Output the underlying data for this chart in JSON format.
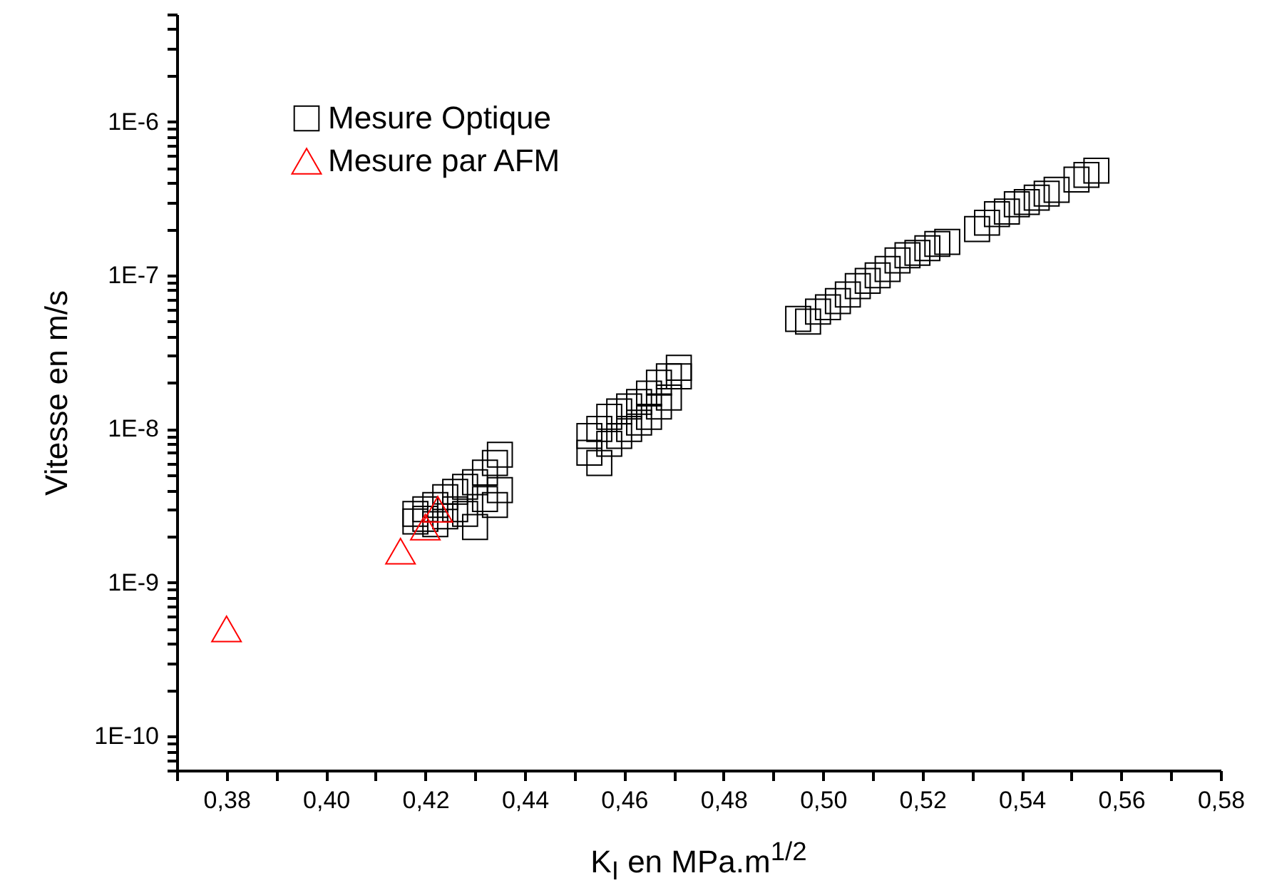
{
  "chart_data": {
    "type": "scatter",
    "xlabel": "K$_{I}$ en MPa.m$^{1/2}$",
    "ylabel": "Vitesse en m/s",
    "log": "y",
    "legend": "top left",
    "grid": false,
    "xlim": [
      0.37,
      0.58
    ],
    "ylim": [
      6e-11,
      5e-06
    ],
    "xticks": [
      {
        "value": 0.37,
        "label": null
      },
      {
        "value": 0.38,
        "label": "0,38"
      },
      {
        "value": 0.39,
        "label": null
      },
      {
        "value": 0.4,
        "label": "0,40"
      },
      {
        "value": 0.41,
        "label": null
      },
      {
        "value": 0.42,
        "label": "0,42"
      },
      {
        "value": 0.43,
        "label": null
      },
      {
        "value": 0.44,
        "label": "0,44"
      },
      {
        "value": 0.45,
        "label": null
      },
      {
        "value": 0.46,
        "label": "0,46"
      },
      {
        "value": 0.47,
        "label": null
      },
      {
        "value": 0.48,
        "label": "0,48"
      },
      {
        "value": 0.49,
        "label": null
      },
      {
        "value": 0.5,
        "label": "0,50"
      },
      {
        "value": 0.51,
        "label": null
      },
      {
        "value": 0.52,
        "label": "0,52"
      },
      {
        "value": 0.53,
        "label": null
      },
      {
        "value": 0.54,
        "label": "0,54"
      },
      {
        "value": 0.55,
        "label": null
      },
      {
        "value": 0.56,
        "label": "0,56"
      },
      {
        "value": 0.57,
        "label": null
      },
      {
        "value": 0.58,
        "label": "0,58"
      }
    ],
    "yticks": [
      {
        "value": 6e-11,
        "label": null
      },
      {
        "value": 7e-11,
        "label": null
      },
      {
        "value": 8e-11,
        "label": null
      },
      {
        "value": 9e-11,
        "label": null
      },
      {
        "value": 1e-10,
        "label": "1E-10"
      },
      {
        "value": 2e-10,
        "label": null
      },
      {
        "value": 3e-10,
        "label": null
      },
      {
        "value": 4e-10,
        "label": null
      },
      {
        "value": 5e-10,
        "label": null
      },
      {
        "value": 6e-10,
        "label": null
      },
      {
        "value": 7e-10,
        "label": null
      },
      {
        "value": 8e-10,
        "label": null
      },
      {
        "value": 9e-10,
        "label": null
      },
      {
        "value": 1e-09,
        "label": "1E-9"
      },
      {
        "value": 2e-09,
        "label": null
      },
      {
        "value": 3e-09,
        "label": null
      },
      {
        "value": 4e-09,
        "label": null
      },
      {
        "value": 5e-09,
        "label": null
      },
      {
        "value": 6e-09,
        "label": null
      },
      {
        "value": 7e-09,
        "label": null
      },
      {
        "value": 8e-09,
        "label": null
      },
      {
        "value": 9e-09,
        "label": null
      },
      {
        "value": 1e-08,
        "label": "1E-8"
      },
      {
        "value": 2e-08,
        "label": null
      },
      {
        "value": 3e-08,
        "label": null
      },
      {
        "value": 4e-08,
        "label": null
      },
      {
        "value": 5e-08,
        "label": null
      },
      {
        "value": 6e-08,
        "label": null
      },
      {
        "value": 7e-08,
        "label": null
      },
      {
        "value": 8e-08,
        "label": null
      },
      {
        "value": 9e-08,
        "label": null
      },
      {
        "value": 1e-07,
        "label": "1E-7"
      },
      {
        "value": 2e-07,
        "label": null
      },
      {
        "value": 3e-07,
        "label": null
      },
      {
        "value": 4e-07,
        "label": null
      },
      {
        "value": 5e-07,
        "label": null
      },
      {
        "value": 6e-07,
        "label": null
      },
      {
        "value": 7e-07,
        "label": null
      },
      {
        "value": 8e-07,
        "label": null
      },
      {
        "value": 9e-07,
        "label": null
      },
      {
        "value": 1e-06,
        "label": "1E-6"
      },
      {
        "value": 2e-06,
        "label": null
      },
      {
        "value": 3e-06,
        "label": null
      },
      {
        "value": 4e-06,
        "label": null
      },
      {
        "value": 5e-06,
        "label": null
      }
    ],
    "series": [
      {
        "name": "Mesure Optique",
        "color": "#000000",
        "marker": "square",
        "x": [
          0.418,
          0.418,
          0.42,
          0.42,
          0.422,
          0.422,
          0.424,
          0.424,
          0.426,
          0.426,
          0.428,
          0.428,
          0.43,
          0.43,
          0.432,
          0.432,
          0.434,
          0.434,
          0.435,
          0.435,
          0.453,
          0.453,
          0.455,
          0.455,
          0.457,
          0.457,
          0.459,
          0.459,
          0.461,
          0.461,
          0.463,
          0.463,
          0.465,
          0.465,
          0.467,
          0.467,
          0.469,
          0.469,
          0.471,
          0.471,
          0.495,
          0.497,
          0.499,
          0.501,
          0.503,
          0.505,
          0.507,
          0.509,
          0.511,
          0.513,
          0.515,
          0.517,
          0.519,
          0.521,
          0.523,
          0.525,
          0.531,
          0.533,
          0.535,
          0.537,
          0.539,
          0.541,
          0.543,
          0.545,
          0.547,
          0.551,
          0.553,
          0.555
        ],
        "values": [
          2.5e-09,
          2.8e-09,
          2.6e-09,
          3e-09,
          2.4e-09,
          3.2e-09,
          2.7e-09,
          3.6e-09,
          3e-09,
          3.9e-09,
          2.8e-09,
          4.2e-09,
          2.3e-09,
          4.5e-09,
          3.5e-09,
          5.2e-09,
          3.2e-09,
          6e-09,
          4e-09,
          6.8e-09,
          7e-09,
          9e-09,
          6e-09,
          1e-08,
          8e-09,
          1.2e-08,
          9e-09,
          1.3e-08,
          1e-08,
          1.4e-08,
          1.1e-08,
          1.5e-08,
          1.2e-08,
          1.7e-08,
          1.4e-08,
          2e-08,
          1.6e-08,
          2.2e-08,
          2.2e-08,
          2.5e-08,
          5.2e-08,
          5e-08,
          5.8e-08,
          6.2e-08,
          6.8e-08,
          7.5e-08,
          8.5e-08,
          9.2e-08,
          1e-07,
          1.1e-07,
          1.25e-07,
          1.35e-07,
          1.4e-07,
          1.5e-07,
          1.6e-07,
          1.65e-07,
          2e-07,
          2.2e-07,
          2.5e-07,
          2.6e-07,
          2.9e-07,
          3e-07,
          3.2e-07,
          3.4e-07,
          3.6e-07,
          4.2e-07,
          4.5e-07,
          4.8e-07
        ]
      },
      {
        "name": "Mesure par AFM",
        "color": "#ff0000",
        "marker": "triangle",
        "x": [
          0.38,
          0.415,
          0.42,
          0.4225
        ],
        "values": [
          5e-10,
          1.6e-09,
          2.3e-09,
          3e-09
        ]
      }
    ]
  }
}
